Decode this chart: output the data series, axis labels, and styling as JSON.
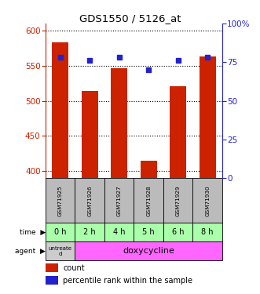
{
  "title": "GDS1550 / 5126_at",
  "samples": [
    "GSM71925",
    "GSM71926",
    "GSM71927",
    "GSM71928",
    "GSM71929",
    "GSM71930"
  ],
  "counts": [
    583,
    514,
    546,
    415,
    521,
    563
  ],
  "percentile_ranks": [
    78,
    76,
    78,
    70,
    76,
    78
  ],
  "ylim_left": [
    390,
    610
  ],
  "ylim_right": [
    0,
    100
  ],
  "yticks_left": [
    400,
    450,
    500,
    550,
    600
  ],
  "yticks_right": [
    0,
    25,
    50,
    75,
    100
  ],
  "bar_color": "#cc2200",
  "dot_color": "#2222cc",
  "time_labels": [
    "0 h",
    "2 h",
    "4 h",
    "5 h",
    "6 h",
    "8 h"
  ],
  "time_bg": "#aaffaa",
  "agent_untreated_bg": "#cccccc",
  "agent_doxy_bg": "#ff66ff",
  "sample_bg": "#bbbbbb",
  "legend_count_color": "#cc2200",
  "legend_pct_color": "#2222cc"
}
